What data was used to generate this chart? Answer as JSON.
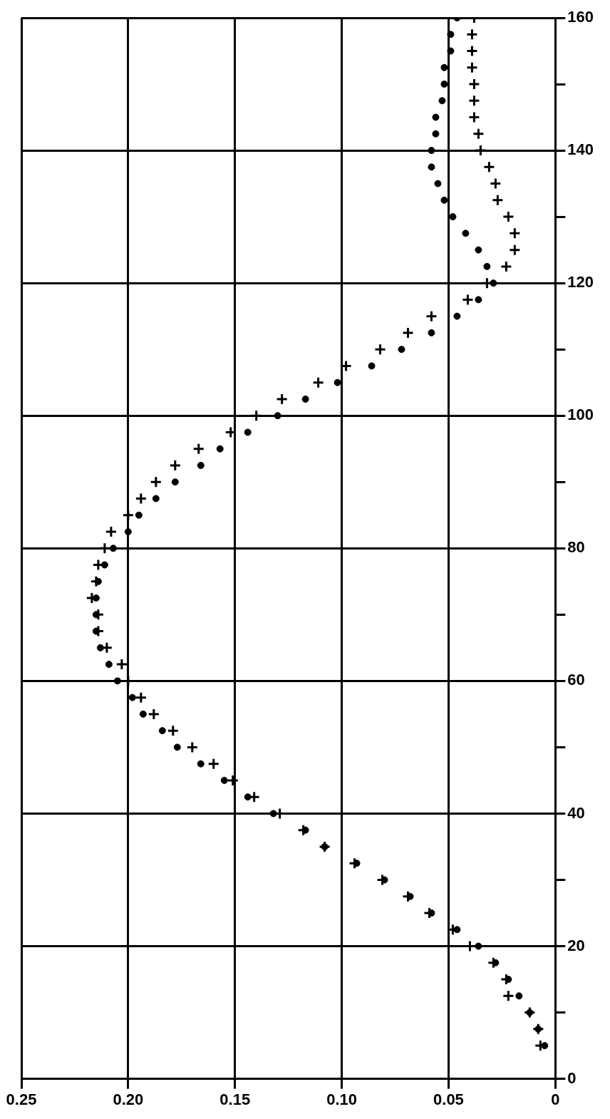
{
  "chart_data": {
    "type": "scatter",
    "xlim": [
      0.25,
      0
    ],
    "xticks": [
      {
        "value": 0.25,
        "label": "0.25"
      },
      {
        "value": 0.2,
        "label": "0.20"
      },
      {
        "value": 0.15,
        "label": "0.15"
      },
      {
        "value": 0.1,
        "label": "0.10"
      },
      {
        "value": 0.05,
        "label": "0.05"
      },
      {
        "value": 0,
        "label": "0"
      }
    ],
    "ylim": [
      0,
      160
    ],
    "yticks": [
      0,
      {
        "value": 10,
        "label": null
      },
      20,
      {
        "value": 30,
        "label": null
      },
      40,
      {
        "value": 50,
        "label": null
      },
      60,
      {
        "value": 70,
        "label": null
      },
      80,
      {
        "value": 90,
        "label": null
      },
      100,
      {
        "value": 110,
        "label": null
      },
      120,
      {
        "value": 130,
        "label": null
      },
      140,
      {
        "value": 150,
        "label": null
      },
      160
    ],
    "grid": true,
    "series": [
      {
        "color": "#000000",
        "marker": "circle",
        "x": [
          0.046,
          0.049,
          0.049,
          0.052,
          0.052,
          0.053,
          0.056,
          0.056,
          0.058,
          0.058,
          0.055,
          0.052,
          0.048,
          0.042,
          0.036,
          0.032,
          0.029,
          0.036,
          0.046,
          0.058,
          0.072,
          0.086,
          0.102,
          0.117,
          0.13,
          0.144,
          0.157,
          0.166,
          0.178,
          0.187,
          0.195,
          0.2,
          0.207,
          0.211,
          0.214,
          0.215,
          0.215,
          0.215,
          0.213,
          0.209,
          0.205,
          0.198,
          0.193,
          0.184,
          0.177,
          0.166,
          0.155,
          0.144,
          0.132,
          0.117,
          0.108,
          0.093,
          0.08,
          0.068,
          0.058,
          0.046,
          0.036,
          0.028,
          0.022,
          0.017,
          0.012,
          0.008,
          0.005
        ],
        "values": [
          160,
          157.5,
          155,
          152.5,
          150,
          147.5,
          145,
          142.5,
          140,
          137.5,
          135,
          132.5,
          130,
          127.5,
          125,
          122.5,
          120,
          117.5,
          115,
          112.5,
          110,
          107.5,
          105,
          102.5,
          100,
          97.5,
          95,
          92.5,
          90,
          87.5,
          85,
          82.5,
          80,
          77.5,
          75,
          72.5,
          70,
          67.5,
          65,
          62.5,
          60,
          57.5,
          55,
          52.5,
          50,
          47.5,
          45,
          42.5,
          40,
          37.5,
          35,
          32.5,
          30,
          27.5,
          25,
          22.5,
          20,
          17.5,
          15,
          12.5,
          10,
          7.5,
          5
        ]
      },
      {
        "color": "#000000",
        "marker": "cross",
        "x": [
          0.038,
          0.039,
          0.039,
          0.039,
          0.038,
          0.038,
          0.038,
          0.036,
          0.035,
          0.031,
          0.028,
          0.027,
          0.022,
          0.019,
          0.019,
          0.023,
          0.032,
          0.041,
          0.058,
          0.069,
          0.082,
          0.098,
          0.111,
          0.128,
          0.14,
          0.152,
          0.167,
          0.178,
          0.187,
          0.194,
          0.2,
          0.208,
          0.211,
          0.214,
          0.215,
          0.217,
          0.214,
          0.214,
          0.21,
          0.203,
          0.2,
          0.194,
          0.188,
          0.179,
          0.17,
          0.16,
          0.151,
          0.141,
          0.129,
          0.118,
          0.108,
          0.094,
          0.081,
          0.069,
          0.059,
          0.048,
          0.04,
          0.029,
          0.023,
          0.022,
          0.012,
          0.008,
          0.007
        ],
        "values": [
          160,
          157.5,
          155,
          152.5,
          150,
          147.5,
          145,
          142.5,
          140,
          137.5,
          135,
          132.5,
          130,
          127.5,
          125,
          122.5,
          120,
          117.5,
          115,
          112.5,
          110,
          107.5,
          105,
          102.5,
          100,
          97.5,
          95,
          92.5,
          90,
          87.5,
          85,
          82.5,
          80,
          77.5,
          75,
          72.5,
          70,
          67.5,
          65,
          62.5,
          60,
          57.5,
          55,
          52.5,
          50,
          47.5,
          45,
          42.5,
          40,
          37.5,
          35,
          32.5,
          30,
          27.5,
          25,
          22.5,
          20,
          17.5,
          15,
          12.5,
          10,
          7.5,
          5
        ]
      }
    ]
  }
}
